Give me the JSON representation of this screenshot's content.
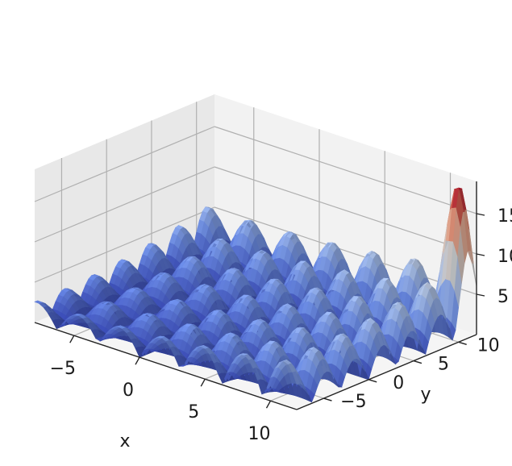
{
  "chart_data": {
    "type": "surface3d",
    "colormap": "coolwarm",
    "colormap_stops": [
      "#3b4cc0",
      "#7396f5",
      "#b0cbfc",
      "#dddddd",
      "#f6bfa6",
      "#ea7b60",
      "#b40426"
    ],
    "xlabel": "x",
    "ylabel": "y",
    "zlabel": "",
    "xlim": [
      -8,
      12
    ],
    "ylim": [
      -8,
      12
    ],
    "zlim": [
      0,
      19
    ],
    "x_ticks": [
      -5,
      0,
      5,
      10
    ],
    "y_ticks": [
      -5,
      0,
      5,
      10
    ],
    "z_ticks": [
      5,
      10,
      15
    ],
    "x_tick_labels": [
      "−5",
      "0",
      "5",
      "10"
    ],
    "y_tick_labels": [
      "−5",
      "0",
      "5",
      "10"
    ],
    "z_tick_labels": [
      "5",
      "10",
      "15"
    ],
    "grid": true,
    "surface": "oscillating bumpy surface |sin(x)·sin(y)|-like ripples, rising to a peak of about 18 near x≈12, y≈12"
  },
  "panes": {
    "background": "#f2f2f2",
    "side": "#e8e8e8",
    "floor": "#f5f5f5"
  }
}
